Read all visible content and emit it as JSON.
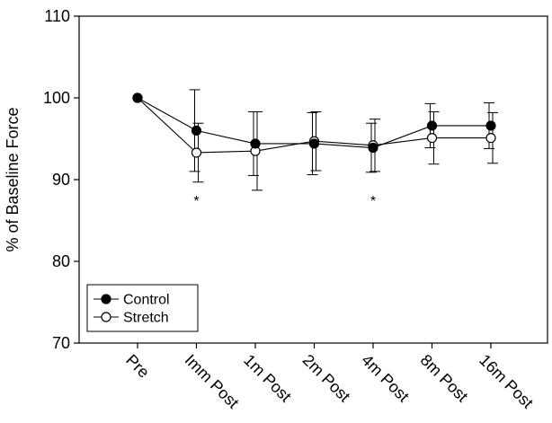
{
  "chart_data": {
    "type": "line",
    "title": "",
    "xlabel": "",
    "ylabel": "% of Baseline Force",
    "ylim": [
      70,
      110
    ],
    "yticks": [
      70,
      80,
      90,
      100,
      110
    ],
    "categories": [
      "Pre",
      "Imm Post",
      "1m Post",
      "2m Post",
      "4m Post",
      "8m Post",
      "16m Post"
    ],
    "grid": false,
    "legend_position": "bottom-left",
    "series": [
      {
        "name": "Control",
        "marker": "filled-circle",
        "color": "#000000",
        "values": [
          100,
          96.0,
          94.4,
          94.4,
          93.9,
          96.6,
          96.6
        ],
        "error": [
          0,
          5.0,
          3.9,
          3.8,
          3.0,
          2.7,
          2.8
        ]
      },
      {
        "name": "Stretch",
        "marker": "open-circle",
        "color": "#000000",
        "values": [
          100,
          93.3,
          93.5,
          94.7,
          94.2,
          95.1,
          95.1
        ],
        "error": [
          0,
          3.6,
          4.8,
          3.6,
          3.2,
          3.2,
          3.1
        ]
      }
    ],
    "annotations": [
      {
        "category": "Imm Post",
        "text": "*"
      },
      {
        "category": "4m Post",
        "text": "*"
      }
    ]
  }
}
